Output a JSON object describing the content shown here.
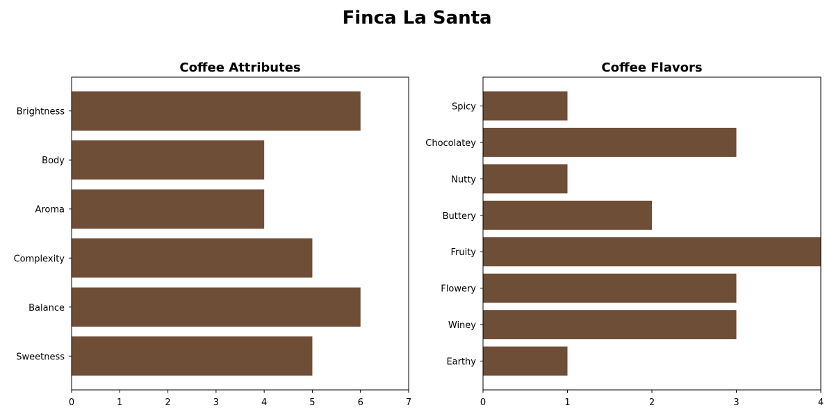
{
  "title": "Finca La Santa",
  "bar_color": "#6F4E37",
  "chart_data": [
    {
      "type": "bar",
      "orientation": "horizontal",
      "title": "Coffee Attributes",
      "categories": [
        "Brightness",
        "Body",
        "Aroma",
        "Complexity",
        "Balance",
        "Sweetness"
      ],
      "values": [
        6,
        4,
        4,
        5,
        6,
        5
      ],
      "xlim": [
        0,
        7
      ],
      "xticks": [
        "0",
        "1",
        "2",
        "3",
        "4",
        "5",
        "6",
        "7"
      ],
      "grid": false
    },
    {
      "type": "bar",
      "orientation": "horizontal",
      "title": "Coffee Flavors",
      "categories": [
        "Spicy",
        "Chocolatey",
        "Nutty",
        "Buttery",
        "Fruity",
        "Flowery",
        "Winey",
        "Earthy"
      ],
      "values": [
        1,
        3,
        1,
        2,
        4,
        3,
        3,
        1
      ],
      "xlim": [
        0,
        4
      ],
      "xticks": [
        "0",
        "1",
        "2",
        "3",
        "4"
      ],
      "grid": false
    }
  ]
}
